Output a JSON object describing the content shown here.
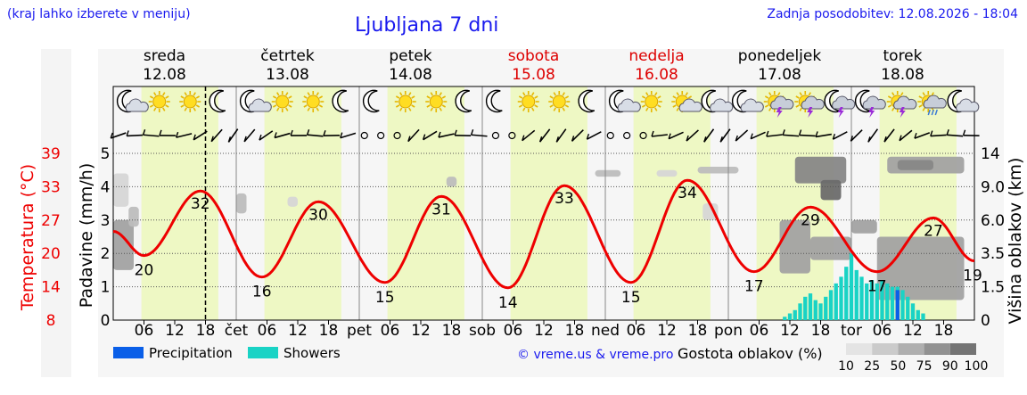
{
  "header": {
    "note": "(kraj lahko izberete v meniju)",
    "title": "Ljubljana 7 dni",
    "updated": "Zadnja posodobitev: 12.08.2026 - 18:04"
  },
  "days": [
    {
      "name": "sreda",
      "date": "12.08",
      "weekend": false
    },
    {
      "name": "četrtek",
      "date": "13.08",
      "weekend": false
    },
    {
      "name": "petek",
      "date": "14.08",
      "weekend": false
    },
    {
      "name": "sobota",
      "date": "15.08",
      "weekend": true
    },
    {
      "name": "nedelja",
      "date": "16.08",
      "weekend": true
    },
    {
      "name": "ponedeljek",
      "date": "17.08",
      "weekend": false
    },
    {
      "name": "torek",
      "date": "18.08",
      "weekend": false
    }
  ],
  "x_tick_labels": {
    "hours": [
      "06",
      "12",
      "18"
    ],
    "day_abbr": [
      "čet",
      "pet",
      "sob",
      "ned",
      "pon",
      "tor"
    ]
  },
  "weather_icons": [
    "moon-cloud-icon",
    "sun-icon",
    "sun-icon",
    "moon-icon",
    "moon-cloud-icon",
    "sun-icon",
    "sun-icon",
    "moon-icon",
    "moon-icon",
    "sun-icon",
    "sun-icon",
    "moon-icon",
    "moon-icon",
    "sun-icon",
    "sun-icon",
    "moon-icon",
    "moon-cloud-icon",
    "sun-icon",
    "sun-cloud-icon",
    "moon-cloud-icon",
    "moon-cloud-icon",
    "sun-thunder-icon",
    "sun-thunder-icon",
    "moon-thunder-icon",
    "moon-thunder-icon",
    "sun-thunder-icon",
    "sun-rain-icon",
    "moon-cloud-icon"
  ],
  "axes": {
    "temp_label": "Temperatura (°C)",
    "temp_ticks": [
      "39",
      "33",
      "27",
      "20",
      "14",
      "8"
    ],
    "precip_label": "Padavine (mm/h)",
    "precip_ticks": [
      "5",
      "4",
      "3",
      "2",
      "1",
      "0"
    ],
    "cloud_label": "Višina oblakov (km)",
    "cloud_ticks": [
      "14",
      "9.0",
      "6.0",
      "3.5",
      "1.5",
      "0"
    ]
  },
  "legend": {
    "precipitation": "Precipitation",
    "showers": "Showers",
    "credit": "© vreme.us & vreme.pro",
    "cloud_title": "Gostota oblakov (%)",
    "cloud_scale": [
      "10",
      "25",
      "50",
      "75",
      "90",
      "100"
    ]
  },
  "colors": {
    "temperature": "#ee0000",
    "precipitation": "#0a5fe8",
    "showers": "#19d3c5",
    "daylight": "#eef8c4",
    "weekend": "#dd0000",
    "text_blue": "#1a1aee"
  },
  "chart_data": {
    "type": "line",
    "x_unit": "hours since 00:00 12.08",
    "ylim_temp": [
      8,
      39
    ],
    "ylim_precip": [
      0,
      5
    ],
    "current_time_hour": 18,
    "temperature_extremes": [
      {
        "hour": 6,
        "value": 20,
        "label": "20"
      },
      {
        "hour": 17,
        "value": 32,
        "label": "32"
      },
      {
        "hour": 29,
        "value": 16,
        "label": "16"
      },
      {
        "hour": 40,
        "value": 30,
        "label": "30"
      },
      {
        "hour": 53,
        "value": 15,
        "label": "15"
      },
      {
        "hour": 64,
        "value": 31,
        "label": "31"
      },
      {
        "hour": 77,
        "value": 14,
        "label": "14"
      },
      {
        "hour": 88,
        "value": 33,
        "label": "33"
      },
      {
        "hour": 101,
        "value": 15,
        "label": "15"
      },
      {
        "hour": 112,
        "value": 34,
        "label": "34"
      },
      {
        "hour": 125,
        "value": 17,
        "label": "17"
      },
      {
        "hour": 136,
        "value": 29,
        "label": "29"
      },
      {
        "hour": 149,
        "value": 17,
        "label": "17"
      },
      {
        "hour": 160,
        "value": 27,
        "label": "27"
      },
      {
        "hour": 168,
        "value": 19,
        "label": "19"
      }
    ],
    "showers": [
      {
        "hour": 131,
        "value": 0.1
      },
      {
        "hour": 132,
        "value": 0.2
      },
      {
        "hour": 133,
        "value": 0.3
      },
      {
        "hour": 134,
        "value": 0.5
      },
      {
        "hour": 135,
        "value": 0.7
      },
      {
        "hour": 136,
        "value": 0.8
      },
      {
        "hour": 137,
        "value": 0.6
      },
      {
        "hour": 138,
        "value": 0.5
      },
      {
        "hour": 139,
        "value": 0.7
      },
      {
        "hour": 140,
        "value": 0.9
      },
      {
        "hour": 141,
        "value": 1.1
      },
      {
        "hour": 142,
        "value": 1.3
      },
      {
        "hour": 143,
        "value": 1.6
      },
      {
        "hour": 144,
        "value": 2.0
      },
      {
        "hour": 145,
        "value": 1.5
      },
      {
        "hour": 146,
        "value": 1.3
      },
      {
        "hour": 147,
        "value": 1.1
      },
      {
        "hour": 148,
        "value": 1.2
      },
      {
        "hour": 149,
        "value": 1.1
      },
      {
        "hour": 150,
        "value": 1.2
      },
      {
        "hour": 151,
        "value": 1.1
      },
      {
        "hour": 152,
        "value": 1.0
      },
      {
        "hour": 153,
        "value": 1.0
      },
      {
        "hour": 154,
        "value": 0.9
      },
      {
        "hour": 155,
        "value": 0.7
      },
      {
        "hour": 156,
        "value": 0.5
      },
      {
        "hour": 157,
        "value": 0.3
      },
      {
        "hour": 158,
        "value": 0.2
      }
    ],
    "precipitation": [
      {
        "hour": 153,
        "value": 0.9
      }
    ],
    "clouds": [
      {
        "h0": 0,
        "h1": 4,
        "v0": 1.5,
        "v1": 3.0,
        "density": 50
      },
      {
        "h0": 3,
        "h1": 5,
        "v0": 2.8,
        "v1": 3.4,
        "density": 25
      },
      {
        "h0": 0,
        "h1": 3,
        "v0": 3.4,
        "v1": 4.4,
        "density": 10
      },
      {
        "h0": 24,
        "h1": 26,
        "v0": 3.2,
        "v1": 3.8,
        "density": 25
      },
      {
        "h0": 34,
        "h1": 36,
        "v0": 3.4,
        "v1": 3.7,
        "density": 10
      },
      {
        "h0": 65,
        "h1": 67,
        "v0": 4.0,
        "v1": 4.3,
        "density": 25
      },
      {
        "h0": 94,
        "h1": 99,
        "v0": 4.3,
        "v1": 4.5,
        "density": 25
      },
      {
        "h0": 106,
        "h1": 110,
        "v0": 4.3,
        "v1": 4.5,
        "density": 10
      },
      {
        "h0": 114,
        "h1": 122,
        "v0": 4.4,
        "v1": 4.6,
        "density": 25
      },
      {
        "h0": 115,
        "h1": 118,
        "v0": 3.0,
        "v1": 3.5,
        "density": 10
      },
      {
        "h0": 133,
        "h1": 143,
        "v0": 4.1,
        "v1": 4.9,
        "density": 75
      },
      {
        "h0": 138,
        "h1": 142,
        "v0": 3.6,
        "v1": 4.2,
        "density": 90
      },
      {
        "h0": 130,
        "h1": 136,
        "v0": 1.4,
        "v1": 3.0,
        "density": 50
      },
      {
        "h0": 136,
        "h1": 144,
        "v0": 1.8,
        "v1": 2.5,
        "density": 50
      },
      {
        "h0": 144,
        "h1": 149,
        "v0": 2.6,
        "v1": 3.0,
        "density": 50
      },
      {
        "h0": 149,
        "h1": 166,
        "v0": 0.6,
        "v1": 2.5,
        "density": 50
      },
      {
        "h0": 151,
        "h1": 166,
        "v0": 4.4,
        "v1": 4.9,
        "density": 50
      },
      {
        "h0": 153,
        "h1": 160,
        "v0": 4.5,
        "v1": 4.8,
        "density": 75
      }
    ]
  }
}
